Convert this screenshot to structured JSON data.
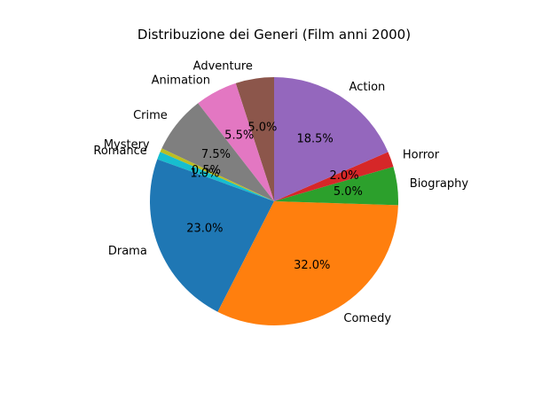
{
  "chart_data": {
    "type": "pie",
    "title": "Distribuzione dei Generi (Film anni 2000)",
    "start_angle_deg": 90,
    "direction": "counterclockwise",
    "slices": [
      {
        "label": "Adventure",
        "value": 5.0,
        "pct_label": "5.0%",
        "color": "#8c564b"
      },
      {
        "label": "Animation",
        "value": 5.5,
        "pct_label": "5.5%",
        "color": "#e377c2"
      },
      {
        "label": "Crime",
        "value": 7.5,
        "pct_label": "7.5%",
        "color": "#7f7f7f"
      },
      {
        "label": "Mystery",
        "value": 0.5,
        "pct_label": "0.5%",
        "color": "#bcbd22"
      },
      {
        "label": "Romance",
        "value": 1.0,
        "pct_label": "1.0%",
        "color": "#17becf"
      },
      {
        "label": "Drama",
        "value": 23.0,
        "pct_label": "23.0%",
        "color": "#1f77b4"
      },
      {
        "label": "Comedy",
        "value": 32.0,
        "pct_label": "32.0%",
        "color": "#ff7f0e"
      },
      {
        "label": "Biography",
        "value": 5.0,
        "pct_label": "5.0%",
        "color": "#2ca02c"
      },
      {
        "label": "Horror",
        "value": 2.0,
        "pct_label": "2.0%",
        "color": "#d62728"
      },
      {
        "label": "Action",
        "value": 18.5,
        "pct_label": "18.5%",
        "color": "#9467bd"
      }
    ]
  }
}
